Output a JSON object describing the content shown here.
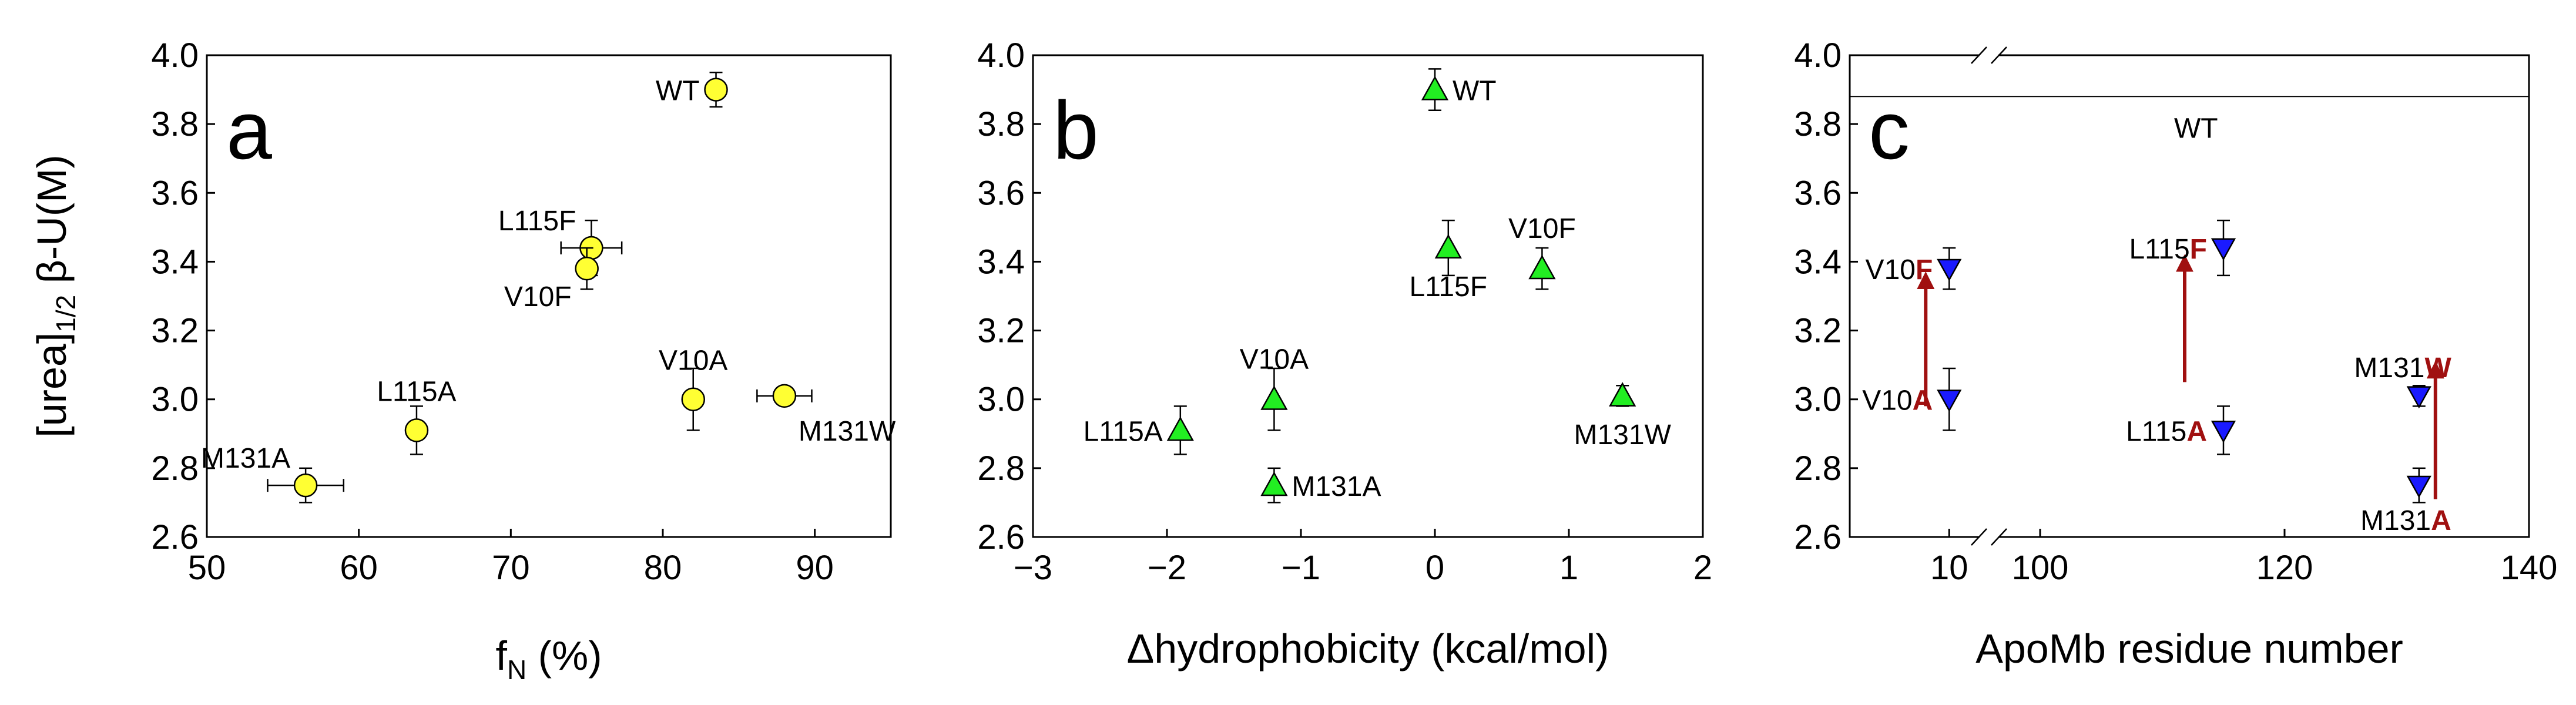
{
  "chart_data": [
    {
      "panel": "a",
      "type": "scatter",
      "panel_label": "a",
      "ylabel_main": "[urea]",
      "ylabel_sub": "1/2",
      "ylabel_tail": " β-U(M)",
      "xlabel_main": "f",
      "xlabel_sub": "N",
      "xlabel_tail": " (%)",
      "xlim": [
        50,
        95
      ],
      "ylim": [
        2.6,
        4.0
      ],
      "xticks": [
        50,
        60,
        70,
        80,
        90
      ],
      "xtick_labels": [
        "50",
        "60",
        "70",
        "80",
        "90"
      ],
      "yticks": [
        2.6,
        2.8,
        3.0,
        3.2,
        3.4,
        3.6,
        3.8,
        4.0
      ],
      "ytick_labels": [
        "2.6",
        "2.8",
        "3.0",
        "3.2",
        "3.4",
        "3.6",
        "3.8",
        "4.0"
      ],
      "marker": "circle",
      "color": "#ffff33",
      "points": [
        {
          "label": "WT",
          "x": 83.5,
          "y": 3.9,
          "xerr": 0,
          "yerr": 0.05,
          "label_pos": "left"
        },
        {
          "label": "L115F",
          "x": 75.3,
          "y": 3.44,
          "xerr": 2.0,
          "yerr": 0.08,
          "label_pos": "upper-left"
        },
        {
          "label": "V10F",
          "x": 75.0,
          "y": 3.38,
          "xerr": 0,
          "yerr": 0.06,
          "label_pos": "lower-left"
        },
        {
          "label": "V10A",
          "x": 82.0,
          "y": 3.0,
          "xerr": 0,
          "yerr": 0.09,
          "label_pos": "above"
        },
        {
          "label": "M131W",
          "x": 88.0,
          "y": 3.01,
          "xerr": 1.8,
          "yerr": 0,
          "label_pos": "lower-right"
        },
        {
          "label": "L115A",
          "x": 63.8,
          "y": 2.91,
          "xerr": 0,
          "yerr": 0.07,
          "label_pos": "above"
        },
        {
          "label": "M131A",
          "x": 56.5,
          "y": 2.75,
          "xerr": 2.5,
          "yerr": 0.05,
          "label_pos": "upper-left"
        }
      ]
    },
    {
      "panel": "b",
      "type": "scatter",
      "panel_label": "b",
      "xlabel": "Δhydrophobicity (kcal/mol)",
      "xlim": [
        -3,
        2
      ],
      "ylim": [
        2.6,
        4.0
      ],
      "xticks": [
        -3,
        -2,
        -1,
        0,
        1,
        2
      ],
      "xtick_labels": [
        "−3",
        "−2",
        "−1",
        "0",
        "1",
        "2"
      ],
      "yticks": [
        2.6,
        2.8,
        3.0,
        3.2,
        3.4,
        3.6,
        3.8,
        4.0
      ],
      "ytick_labels": [
        "2.6",
        "2.8",
        "3.0",
        "3.2",
        "3.4",
        "3.6",
        "3.8",
        "4.0"
      ],
      "marker": "triangle-up",
      "color": "#22ee22",
      "points": [
        {
          "label": "WT",
          "x": 0.0,
          "y": 3.9,
          "yerr": 0.06,
          "label_pos": "right"
        },
        {
          "label": "L115F",
          "x": 0.1,
          "y": 3.44,
          "yerr": 0.08,
          "label_pos": "below"
        },
        {
          "label": "V10F",
          "x": 0.8,
          "y": 3.38,
          "yerr": 0.06,
          "label_pos": "above"
        },
        {
          "label": "V10A",
          "x": -1.2,
          "y": 3.0,
          "yerr": 0.09,
          "label_pos": "above"
        },
        {
          "label": "M131W",
          "x": 1.4,
          "y": 3.01,
          "yerr": 0.03,
          "label_pos": "below"
        },
        {
          "label": "L115A",
          "x": -1.9,
          "y": 2.91,
          "yerr": 0.07,
          "label_pos": "left"
        },
        {
          "label": "M131A",
          "x": -1.2,
          "y": 2.75,
          "yerr": 0.05,
          "label_pos": "right"
        }
      ]
    },
    {
      "panel": "c",
      "type": "scatter",
      "panel_label": "c",
      "xlabel": "ApoMb residue number",
      "broken_x_axis": true,
      "xtick_labels": [
        "10",
        "100",
        "120",
        "140"
      ],
      "ylim": [
        2.6,
        4.0
      ],
      "yticks": [
        2.6,
        2.8,
        3.0,
        3.2,
        3.4,
        3.6,
        3.8,
        4.0
      ],
      "ytick_labels": [
        "2.6",
        "2.8",
        "3.0",
        "3.2",
        "3.4",
        "3.6",
        "3.8",
        "4.0"
      ],
      "wt_line": {
        "label": "WT",
        "y": 3.88
      },
      "marker": "triangle-down",
      "color": "#1a1aff",
      "arrow_color": "#a01010",
      "points": [
        {
          "residue": 10,
          "y": 3.38,
          "yerr": 0.06,
          "prefix": "V10",
          "mut": "F"
        },
        {
          "residue": 10,
          "y": 3.0,
          "yerr": 0.09,
          "prefix": "V10",
          "mut": "A"
        },
        {
          "residue": 115,
          "y": 3.44,
          "yerr": 0.08,
          "prefix": "L115",
          "mut": "F"
        },
        {
          "residue": 115,
          "y": 2.91,
          "yerr": 0.07,
          "prefix": "L115",
          "mut": "A"
        },
        {
          "residue": 131,
          "y": 3.01,
          "yerr": 0.03,
          "prefix": "M131",
          "mut": "W"
        },
        {
          "residue": 131,
          "y": 2.75,
          "yerr": 0.05,
          "prefix": "M131",
          "mut": "A"
        }
      ],
      "arrows": [
        {
          "residue": 10,
          "from": 2.98,
          "to": 3.37
        },
        {
          "residue": 115,
          "from": 3.05,
          "to": 3.42
        },
        {
          "residue": 131,
          "from": 2.71,
          "to": 3.11
        }
      ]
    }
  ]
}
